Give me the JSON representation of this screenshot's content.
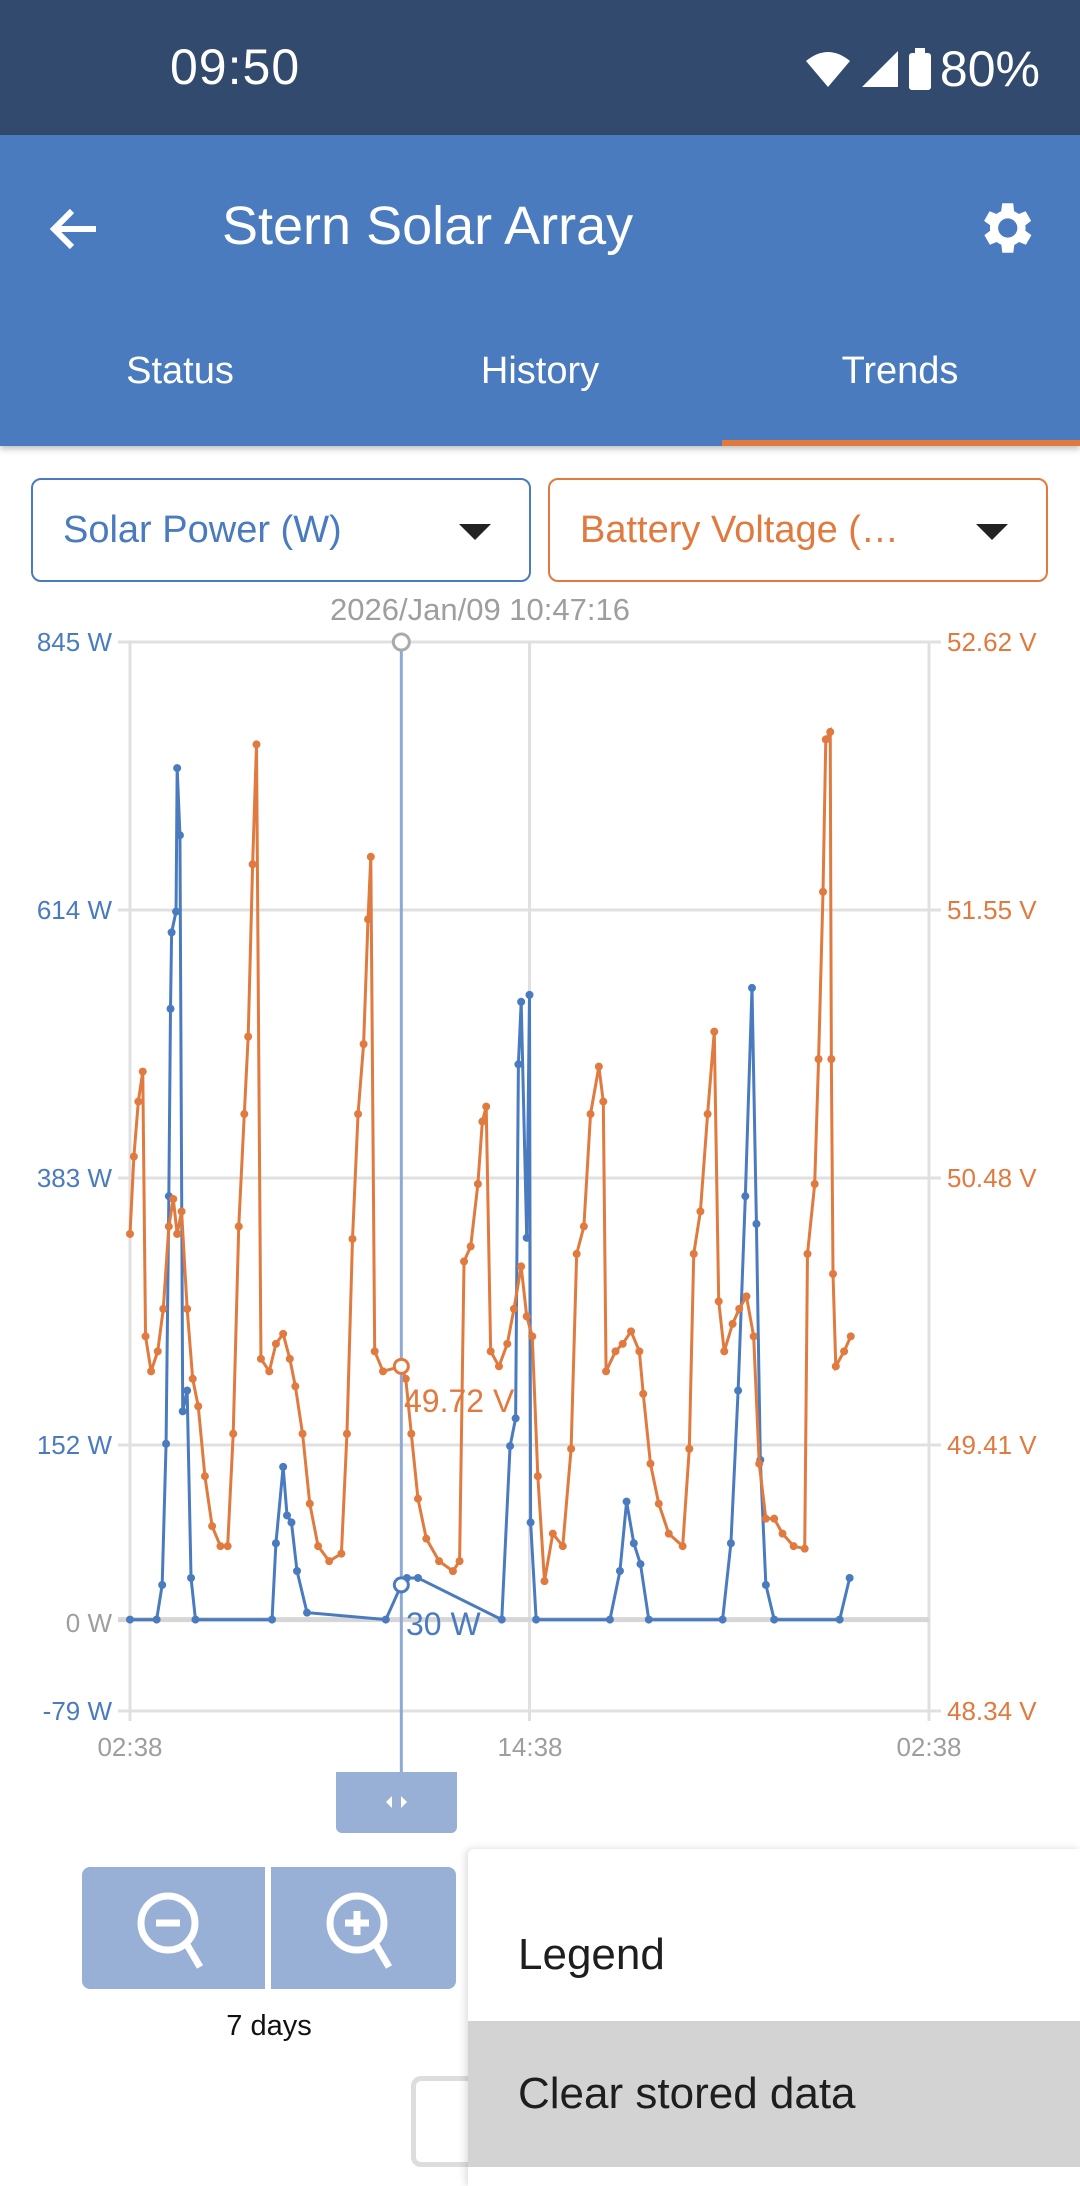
{
  "status_bar": {
    "time": "09:50",
    "battery": "80%",
    "icons": [
      "wifi-icon",
      "cell-signal-icon",
      "battery-icon"
    ]
  },
  "app_bar": {
    "title": "Stern Solar Array",
    "back_icon": "arrow-left-icon",
    "settings_icon": "gear-icon"
  },
  "tabs": [
    {
      "label": "Status",
      "active": false
    },
    {
      "label": "History",
      "active": false
    },
    {
      "label": "Trends",
      "active": true
    }
  ],
  "selectors": {
    "left": "Solar Power (W)",
    "right": "Battery Voltage (…"
  },
  "colors": {
    "primary": "#4a7bbf",
    "accent": "#e07a3f",
    "status_bar": "#314a6e"
  },
  "cursor": {
    "timestamp": "2026/Jan/09 10:47:16",
    "power_label": "30 W",
    "voltage_label": "49.72 V"
  },
  "zoom": {
    "range_label": "7 days",
    "zoom_out_icon": "zoom-out-icon",
    "zoom_in_icon": "zoom-in-icon"
  },
  "menu": {
    "items": [
      {
        "label": "Legend"
      },
      {
        "label": "Clear stored data",
        "highlighted": true
      }
    ]
  },
  "chart_data": {
    "type": "line",
    "x_ticks": [
      "02:38",
      "14:38",
      "02:38"
    ],
    "left_axis": {
      "ticks": [
        "845 W",
        "614 W",
        "383 W",
        "152 W",
        "0 W",
        "-79 W"
      ],
      "range": [
        -79,
        845
      ],
      "unit": "W"
    },
    "right_axis": {
      "ticks": [
        "52.62 V",
        "51.55 V",
        "50.48 V",
        "49.41 V",
        "48.34 V"
      ],
      "range": [
        48.34,
        52.62
      ],
      "unit": "V"
    },
    "grid": true,
    "cursor_x": "10:47",
    "series": [
      {
        "axis": "left",
        "color": "#4a7bbf",
        "points": [
          [
            "02:38",
            0
          ],
          [
            "03:26",
            0
          ],
          [
            "03:36",
            30
          ],
          [
            "03:43",
            152
          ],
          [
            "03:48",
            366
          ],
          [
            "03:51",
            528
          ],
          [
            "03:53",
            594
          ],
          [
            "04:01",
            612
          ],
          [
            "04:03",
            736
          ],
          [
            "04:08",
            678
          ],
          [
            "04:13",
            180
          ],
          [
            "04:21",
            198
          ],
          [
            "04:28",
            36
          ],
          [
            "04:36",
            0
          ],
          [
            "06:54",
            0
          ],
          [
            "07:01",
            66
          ],
          [
            "07:14",
            132
          ],
          [
            "07:21",
            90
          ],
          [
            "07:29",
            84
          ],
          [
            "07:39",
            42
          ],
          [
            "07:57",
            6
          ],
          [
            "10:19",
            0
          ],
          [
            "10:47",
            30
          ],
          [
            "10:57",
            36
          ],
          [
            "11:17",
            36
          ],
          [
            "13:48",
            0
          ],
          [
            "14:03",
            150
          ],
          [
            "14:13",
            174
          ],
          [
            "14:18",
            480
          ],
          [
            "14:23",
            534
          ],
          [
            "14:33",
            330
          ],
          [
            "14:38",
            540
          ],
          [
            "14:40",
            84
          ],
          [
            "14:50",
            0
          ],
          [
            "17:03",
            0
          ],
          [
            "17:21",
            42
          ],
          [
            "17:33",
            102
          ],
          [
            "17:46",
            66
          ],
          [
            "17:58",
            48
          ],
          [
            "18:13",
            0
          ],
          [
            "20:26",
            0
          ],
          [
            "20:41",
            66
          ],
          [
            "20:54",
            198
          ],
          [
            "21:07",
            366
          ],
          [
            "21:19",
            546
          ],
          [
            "21:27",
            342
          ],
          [
            "21:34",
            138
          ],
          [
            "21:44",
            30
          ],
          [
            "21:59",
            0
          ],
          [
            "23:57",
            0
          ],
          [
            "00:15",
            36
          ]
        ]
      },
      {
        "axis": "right",
        "color": "#e07a3f",
        "points": [
          [
            "02:38",
            50.25
          ],
          [
            "02:45",
            50.56
          ],
          [
            "02:53",
            50.78
          ],
          [
            "03:01",
            50.9
          ],
          [
            "03:06",
            49.84
          ],
          [
            "03:16",
            49.7
          ],
          [
            "03:28",
            49.78
          ],
          [
            "03:38",
            49.95
          ],
          [
            "03:48",
            50.28
          ],
          [
            "03:56",
            50.39
          ],
          [
            "04:03",
            50.25
          ],
          [
            "04:11",
            50.34
          ],
          [
            "04:21",
            49.95
          ],
          [
            "04:31",
            49.67
          ],
          [
            "04:41",
            49.56
          ],
          [
            "04:53",
            49.28
          ],
          [
            "05:06",
            49.08
          ],
          [
            "05:21",
            49.0
          ],
          [
            "05:34",
            49.0
          ],
          [
            "05:44",
            49.45
          ],
          [
            "05:54",
            50.28
          ],
          [
            "06:04",
            50.73
          ],
          [
            "06:11",
            51.04
          ],
          [
            "06:19",
            51.73
          ],
          [
            "06:26",
            52.21
          ],
          [
            "06:34",
            49.75
          ],
          [
            "06:49",
            49.7
          ],
          [
            "07:01",
            49.81
          ],
          [
            "07:14",
            49.85
          ],
          [
            "07:26",
            49.75
          ],
          [
            "07:36",
            49.64
          ],
          [
            "07:49",
            49.45
          ],
          [
            "08:02",
            49.17
          ],
          [
            "08:17",
            49.0
          ],
          [
            "08:37",
            48.94
          ],
          [
            "08:59",
            48.97
          ],
          [
            "09:09",
            49.45
          ],
          [
            "09:19",
            50.23
          ],
          [
            "09:29",
            50.73
          ],
          [
            "09:39",
            51.01
          ],
          [
            "09:47",
            51.51
          ],
          [
            "09:52",
            51.76
          ],
          [
            "09:59",
            49.78
          ],
          [
            "10:14",
            49.7
          ],
          [
            "10:47",
            49.72
          ],
          [
            "10:55",
            49.67
          ],
          [
            "11:05",
            49.45
          ],
          [
            "11:17",
            49.19
          ],
          [
            "11:32",
            49.03
          ],
          [
            "11:55",
            48.94
          ],
          [
            "12:20",
            48.9
          ],
          [
            "12:32",
            48.94
          ],
          [
            "12:40",
            50.14
          ],
          [
            "12:52",
            50.2
          ],
          [
            "13:05",
            50.45
          ],
          [
            "13:13",
            50.7
          ],
          [
            "13:20",
            50.76
          ],
          [
            "13:28",
            49.78
          ],
          [
            "13:43",
            49.72
          ],
          [
            "13:58",
            49.81
          ],
          [
            "14:10",
            49.95
          ],
          [
            "14:23",
            50.12
          ],
          [
            "14:33",
            49.92
          ],
          [
            "14:43",
            49.84
          ],
          [
            "14:53",
            49.28
          ],
          [
            "15:05",
            48.86
          ],
          [
            "15:20",
            49.05
          ],
          [
            "15:38",
            49.0
          ],
          [
            "15:53",
            49.39
          ],
          [
            "16:03",
            50.17
          ],
          [
            "16:16",
            50.28
          ],
          [
            "16:28",
            50.73
          ],
          [
            "16:43",
            50.92
          ],
          [
            "16:51",
            50.78
          ],
          [
            "16:56",
            49.7
          ],
          [
            "17:13",
            49.78
          ],
          [
            "17:26",
            49.81
          ],
          [
            "17:41",
            49.86
          ],
          [
            "17:56",
            49.78
          ],
          [
            "18:03",
            49.61
          ],
          [
            "18:16",
            49.33
          ],
          [
            "18:31",
            49.17
          ],
          [
            "18:49",
            49.05
          ],
          [
            "19:14",
            49.0
          ],
          [
            "19:26",
            49.39
          ],
          [
            "19:34",
            50.17
          ],
          [
            "19:46",
            50.34
          ],
          [
            "19:59",
            50.73
          ],
          [
            "20:11",
            51.06
          ],
          [
            "20:19",
            49.98
          ],
          [
            "20:29",
            49.78
          ],
          [
            "20:44",
            49.89
          ],
          [
            "20:56",
            49.95
          ],
          [
            "21:09",
            50.0
          ],
          [
            "21:22",
            49.84
          ],
          [
            "21:32",
            49.33
          ],
          [
            "21:44",
            49.11
          ],
          [
            "21:59",
            49.11
          ],
          [
            "22:14",
            49.05
          ],
          [
            "22:34",
            49.0
          ],
          [
            "22:54",
            48.99
          ],
          [
            "22:59",
            50.17
          ],
          [
            "23:12",
            50.45
          ],
          [
            "23:19",
            50.95
          ],
          [
            "23:27",
            51.62
          ],
          [
            "23:32",
            52.23
          ],
          [
            "23:40",
            52.26
          ],
          [
            "23:42",
            50.95
          ],
          [
            "23:45",
            50.09
          ],
          [
            "23:50",
            49.72
          ],
          [
            "00:05",
            49.78
          ],
          [
            "00:17",
            49.84
          ]
        ]
      }
    ]
  }
}
